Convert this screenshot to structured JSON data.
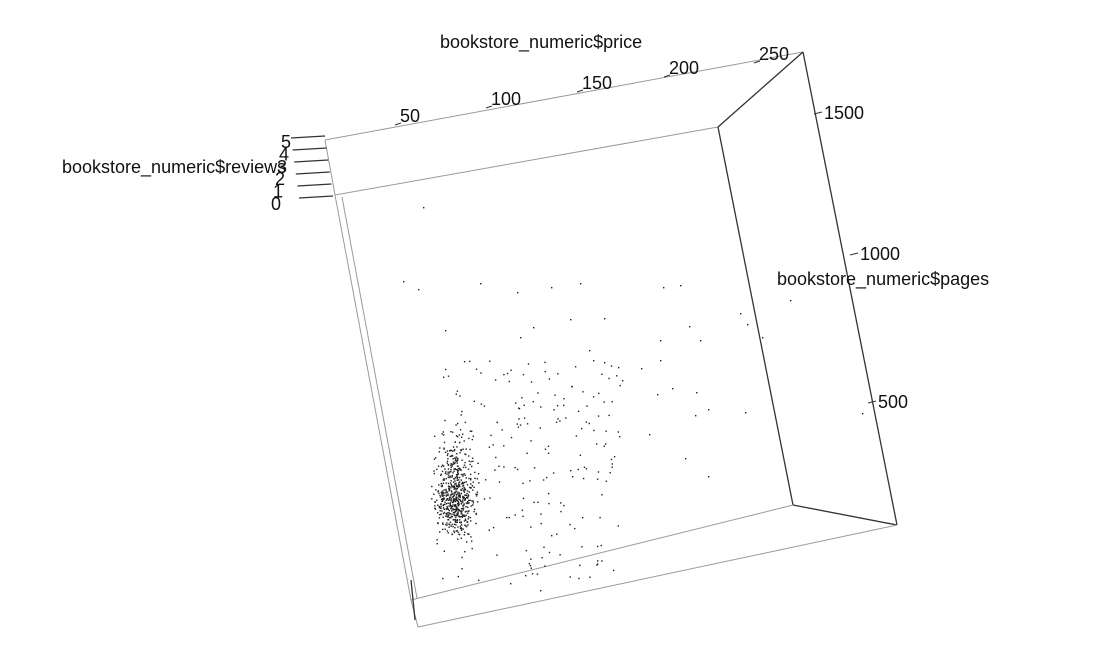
{
  "chart_data": {
    "type": "scatter",
    "projection": "3d",
    "axes": {
      "x": {
        "label": "bookstore_numeric$price",
        "ticks": [
          {
            "value": 50,
            "label": "50"
          },
          {
            "value": 100,
            "label": "100"
          },
          {
            "value": 150,
            "label": "150"
          },
          {
            "value": 200,
            "label": "200"
          },
          {
            "value": 250,
            "label": "250"
          }
        ],
        "range": [
          20,
          255
        ]
      },
      "y": {
        "label": "bookstore_numeric$pages",
        "ticks": [
          {
            "value": 500,
            "label": "500"
          },
          {
            "value": 1000,
            "label": "1000"
          },
          {
            "value": 1500,
            "label": "1500"
          }
        ],
        "range": [
          0,
          1700
        ]
      },
      "z": {
        "label": "bookstore_numeric$reviews",
        "ticks": [
          {
            "value": 0,
            "label": "0"
          },
          {
            "value": 1,
            "label": "1"
          },
          {
            "value": 2,
            "label": "2"
          },
          {
            "value": 3,
            "label": "3"
          },
          {
            "value": 4,
            "label": "4"
          },
          {
            "value": 5,
            "label": "5"
          }
        ],
        "range": [
          0,
          5
        ]
      }
    },
    "point_color": "#222222",
    "points_approximate": true
  }
}
